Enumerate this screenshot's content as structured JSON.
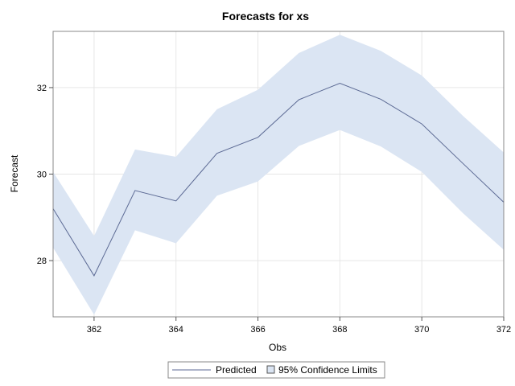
{
  "chart_data": {
    "type": "line",
    "title": "Forecasts for xs",
    "xlabel": "Obs",
    "ylabel": "Forecast",
    "xlim": [
      361,
      372
    ],
    "ylim": [
      26.7,
      33.3
    ],
    "x_ticks": [
      362,
      364,
      366,
      368,
      370,
      372
    ],
    "y_ticks": [
      28,
      30,
      32
    ],
    "grid": true,
    "legend_position": "bottom",
    "x": [
      361,
      362,
      363,
      364,
      365,
      366,
      367,
      368,
      369,
      370,
      371,
      372
    ],
    "series": [
      {
        "name": "Predicted",
        "values": [
          29.2,
          27.65,
          29.62,
          29.38,
          30.48,
          30.85,
          31.72,
          32.1,
          31.73,
          31.16,
          30.25,
          29.35
        ],
        "color": "#5c6a94"
      }
    ],
    "band": {
      "name": "95% Confidence Limits",
      "lower": [
        28.3,
        26.75,
        28.7,
        28.4,
        29.5,
        29.83,
        30.65,
        31.02,
        30.64,
        30.05,
        29.1,
        28.25
      ],
      "upper": [
        30.05,
        28.57,
        30.57,
        30.4,
        31.5,
        31.95,
        32.8,
        33.22,
        32.85,
        32.28,
        31.35,
        30.5
      ],
      "color": "#dbe5f3"
    },
    "colors": {
      "frame": "#888888",
      "grid": "#e6e6e6",
      "background": "#ffffff"
    }
  }
}
